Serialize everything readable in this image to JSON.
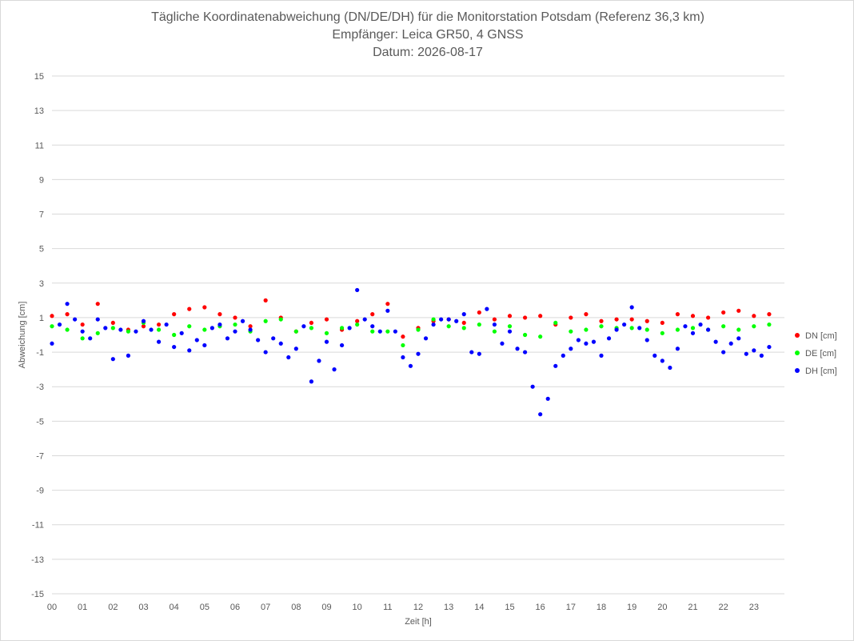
{
  "chart_data": {
    "type": "scatter",
    "title": "Tägliche Koordinatenabweichung (DN/DE/DH) für die Monitorstation Potsdam (Referenz 36,3 km)",
    "subtitle": "Empfänger: Leica GR50, 4 GNSS",
    "date_line": "Datum: 2026-08-17",
    "xlabel": "Zeit [h]",
    "ylabel": "Abweichung [cm]",
    "xlim": [
      0,
      24
    ],
    "ylim": [
      -15,
      15
    ],
    "x_ticks": [
      "00",
      "01",
      "02",
      "03",
      "04",
      "05",
      "06",
      "07",
      "08",
      "09",
      "10",
      "11",
      "12",
      "13",
      "14",
      "15",
      "16",
      "17",
      "18",
      "19",
      "20",
      "21",
      "22",
      "23"
    ],
    "y_ticks": [
      15,
      13,
      11,
      9,
      7,
      5,
      3,
      1,
      -1,
      -3,
      -5,
      -7,
      -9,
      -11,
      -13,
      -15
    ],
    "grid": "horizontal",
    "legend_position": "right",
    "series": [
      {
        "name": "DN [cm]",
        "color": "#ff0000",
        "x": [
          0.0,
          0.5,
          1.0,
          1.5,
          2.0,
          2.5,
          3.0,
          3.5,
          4.0,
          4.5,
          5.0,
          5.5,
          6.0,
          6.5,
          7.0,
          7.5,
          8.0,
          8.5,
          9.0,
          9.5,
          10.0,
          10.5,
          11.0,
          11.5,
          12.0,
          12.5,
          13.0,
          13.5,
          14.0,
          14.5,
          15.0,
          15.5,
          16.0,
          16.5,
          17.0,
          17.5,
          18.0,
          18.5,
          19.0,
          19.5,
          20.0,
          20.5,
          21.0,
          21.5,
          22.0,
          22.5,
          23.0,
          23.5
        ],
        "y": [
          1.1,
          1.2,
          0.6,
          1.8,
          0.7,
          0.3,
          0.5,
          0.6,
          1.2,
          1.5,
          1.6,
          1.2,
          1.0,
          0.5,
          2.0,
          1.0,
          0.2,
          0.7,
          0.9,
          0.3,
          0.8,
          1.2,
          1.8,
          -0.1,
          0.4,
          0.8,
          0.9,
          0.7,
          1.3,
          0.9,
          1.1,
          1.0,
          1.1,
          0.6,
          1.0,
          1.2,
          0.8,
          0.9,
          0.9,
          0.8,
          0.7,
          1.2,
          1.1,
          1.0,
          1.3,
          1.4,
          1.1,
          1.2
        ]
      },
      {
        "name": "DE [cm]",
        "color": "#00ff00",
        "x": [
          0.0,
          0.5,
          1.0,
          1.5,
          2.0,
          2.5,
          3.0,
          3.5,
          4.0,
          4.5,
          5.0,
          5.5,
          6.0,
          6.5,
          7.0,
          7.5,
          8.0,
          8.5,
          9.0,
          9.5,
          10.0,
          10.5,
          11.0,
          11.5,
          12.0,
          12.5,
          13.0,
          13.5,
          14.0,
          14.5,
          15.0,
          15.5,
          16.0,
          16.5,
          17.0,
          17.5,
          18.0,
          18.5,
          19.0,
          19.5,
          20.0,
          20.5,
          21.0,
          21.5,
          22.0,
          22.5,
          23.0,
          23.5
        ],
        "y": [
          0.5,
          0.3,
          -0.2,
          0.1,
          0.4,
          0.2,
          0.7,
          0.3,
          0.0,
          0.5,
          0.3,
          0.5,
          0.6,
          0.2,
          0.8,
          0.9,
          0.2,
          0.4,
          0.1,
          0.4,
          0.6,
          0.2,
          0.2,
          -0.6,
          0.3,
          0.9,
          0.5,
          0.4,
          0.6,
          0.2,
          0.5,
          0.0,
          -0.1,
          0.7,
          0.2,
          0.3,
          0.5,
          0.4,
          0.4,
          0.3,
          0.1,
          0.3,
          0.4,
          0.3,
          0.5,
          0.3,
          0.5,
          0.6
        ]
      },
      {
        "name": "DH [cm]",
        "color": "#0000ff",
        "x": [
          0.0,
          0.25,
          0.5,
          0.75,
          1.0,
          1.25,
          1.5,
          1.75,
          2.0,
          2.25,
          2.5,
          2.75,
          3.0,
          3.25,
          3.5,
          3.75,
          4.0,
          4.25,
          4.5,
          4.75,
          5.0,
          5.25,
          5.5,
          5.75,
          6.0,
          6.25,
          6.5,
          6.75,
          7.0,
          7.25,
          7.5,
          7.75,
          8.0,
          8.25,
          8.5,
          8.75,
          9.0,
          9.25,
          9.5,
          9.75,
          10.0,
          10.25,
          10.5,
          10.75,
          11.0,
          11.25,
          11.5,
          11.75,
          12.0,
          12.25,
          12.5,
          12.75,
          13.0,
          13.25,
          13.5,
          13.75,
          14.0,
          14.25,
          14.5,
          14.75,
          15.0,
          15.25,
          15.5,
          15.75,
          16.0,
          16.25,
          16.5,
          16.75,
          17.0,
          17.25,
          17.5,
          17.75,
          18.0,
          18.25,
          18.5,
          18.75,
          19.0,
          19.25,
          19.5,
          19.75,
          20.0,
          20.25,
          20.5,
          20.75,
          21.0,
          21.25,
          21.5,
          21.75,
          22.0,
          22.25,
          22.5,
          22.75,
          23.0,
          23.25,
          23.5
        ],
        "y": [
          -0.5,
          0.6,
          1.8,
          0.9,
          0.2,
          -0.2,
          0.9,
          0.4,
          -1.4,
          0.3,
          -1.2,
          0.2,
          0.8,
          0.3,
          -0.4,
          0.6,
          -0.7,
          0.1,
          -0.9,
          -0.3,
          -0.6,
          0.4,
          0.6,
          -0.2,
          0.2,
          0.8,
          0.3,
          -0.3,
          -1.0,
          -0.2,
          -0.5,
          -1.3,
          -0.8,
          0.5,
          -2.7,
          -1.5,
          -0.4,
          -2.0,
          -0.6,
          0.4,
          2.6,
          0.9,
          0.5,
          0.2,
          1.4,
          0.2,
          -1.3,
          -1.8,
          -1.1,
          -0.2,
          0.6,
          0.9,
          0.9,
          0.8,
          1.2,
          -1.0,
          -1.1,
          1.5,
          0.6,
          -0.5,
          0.2,
          -0.8,
          -1.0,
          -3.0,
          -4.6,
          -3.7,
          -1.8,
          -1.2,
          -0.8,
          -0.3,
          -0.5,
          -0.4,
          -1.2,
          -0.2,
          0.3,
          0.6,
          1.6,
          0.4,
          -0.3,
          -1.2,
          -1.5,
          -1.9,
          -0.8,
          0.5,
          0.1,
          0.6,
          0.3,
          -0.4,
          -1.0,
          -0.5,
          -0.2,
          -1.1,
          -0.9,
          -1.2,
          -0.7
        ]
      }
    ]
  }
}
